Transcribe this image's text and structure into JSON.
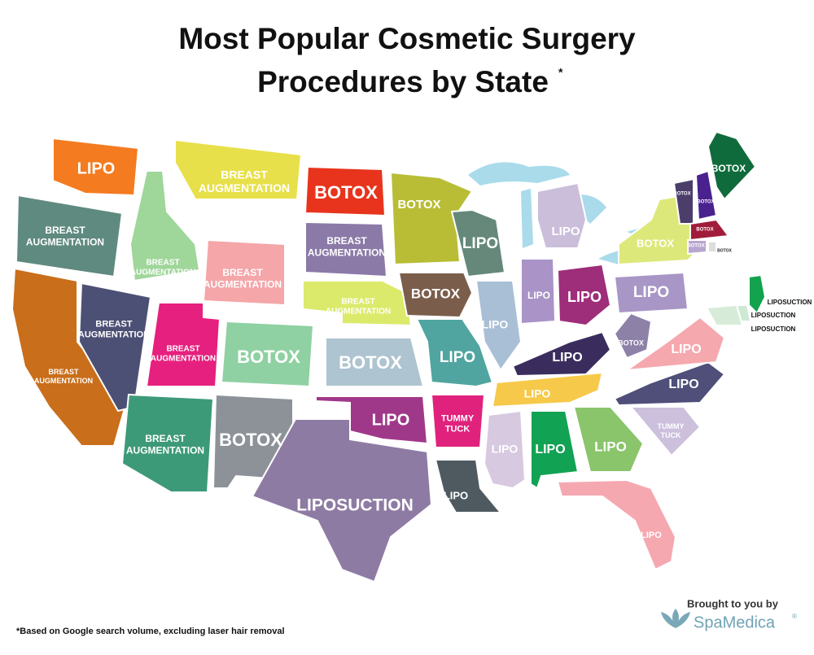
{
  "header": {
    "title_lines": [
      "Most Popular Cosmetic Surgery",
      "Procedures by State"
    ],
    "title_mark": "*"
  },
  "states": [
    [
      "LIPO"
    ],
    [
      "BREAST",
      "AUGMENTATION"
    ],
    [
      "BREAST",
      "AUGMENTATION"
    ],
    [
      "BREAST",
      "AUGMENTATION"
    ],
    [
      "BREAST",
      "AUGMENTATION"
    ],
    [
      "BREAST",
      "AUGMENTATION"
    ],
    [
      "BREAST",
      "AUGMENTATION"
    ],
    [
      "BREAST",
      "AUGMENTATION"
    ],
    [
      "BOTOX"
    ],
    [
      "BREAST",
      "AUGMENTATION"
    ],
    [
      "BOTOX"
    ],
    [
      "BOTOX"
    ],
    [
      "BREAST",
      "AUGMENTATION"
    ],
    [
      "BREAST",
      "AUGMENTATION"
    ],
    [
      "BOTOX"
    ],
    [
      "LIPO"
    ],
    [
      "LIPOSUCTION"
    ],
    [
      "BOTOX"
    ],
    [
      "BOTOX"
    ],
    [
      "LIPO"
    ],
    [
      "TUMMY",
      "TUCK"
    ],
    [
      "LIPO"
    ],
    [
      "LIPO"
    ],
    [
      "LIPO"
    ],
    [
      "LIPO"
    ],
    [
      "LIPO"
    ],
    [
      "LIPO"
    ],
    [
      "LIPO"
    ],
    [
      "LIPO"
    ],
    [
      "LIPO"
    ],
    [
      "LIPO"
    ],
    [
      "LIPO"
    ],
    [
      "LIPO"
    ],
    [
      "TUMMY",
      "TUCK"
    ],
    [
      "LIPO"
    ],
    [
      "LIPO"
    ],
    [
      "BOTOX"
    ],
    [
      "LIPO"
    ],
    [
      "BOTOX"
    ],
    [
      "BOTOX"
    ],
    [
      "BOTOX"
    ],
    [
      "BOTOX"
    ],
    [
      "BOTOX"
    ],
    [
      "BOTOX"
    ],
    [
      "BOTOX"
    ],
    [
      "LIPOSUCTION"
    ],
    [
      "LIPOSUCTION"
    ],
    [
      "LIPOSUCTION"
    ]
  ],
  "footnote": "*Based on Google search volume, excluding laser hair removal",
  "credit": {
    "line": "Brought to you by",
    "brand": "SpaMedica",
    "brand_mark": "®"
  }
}
